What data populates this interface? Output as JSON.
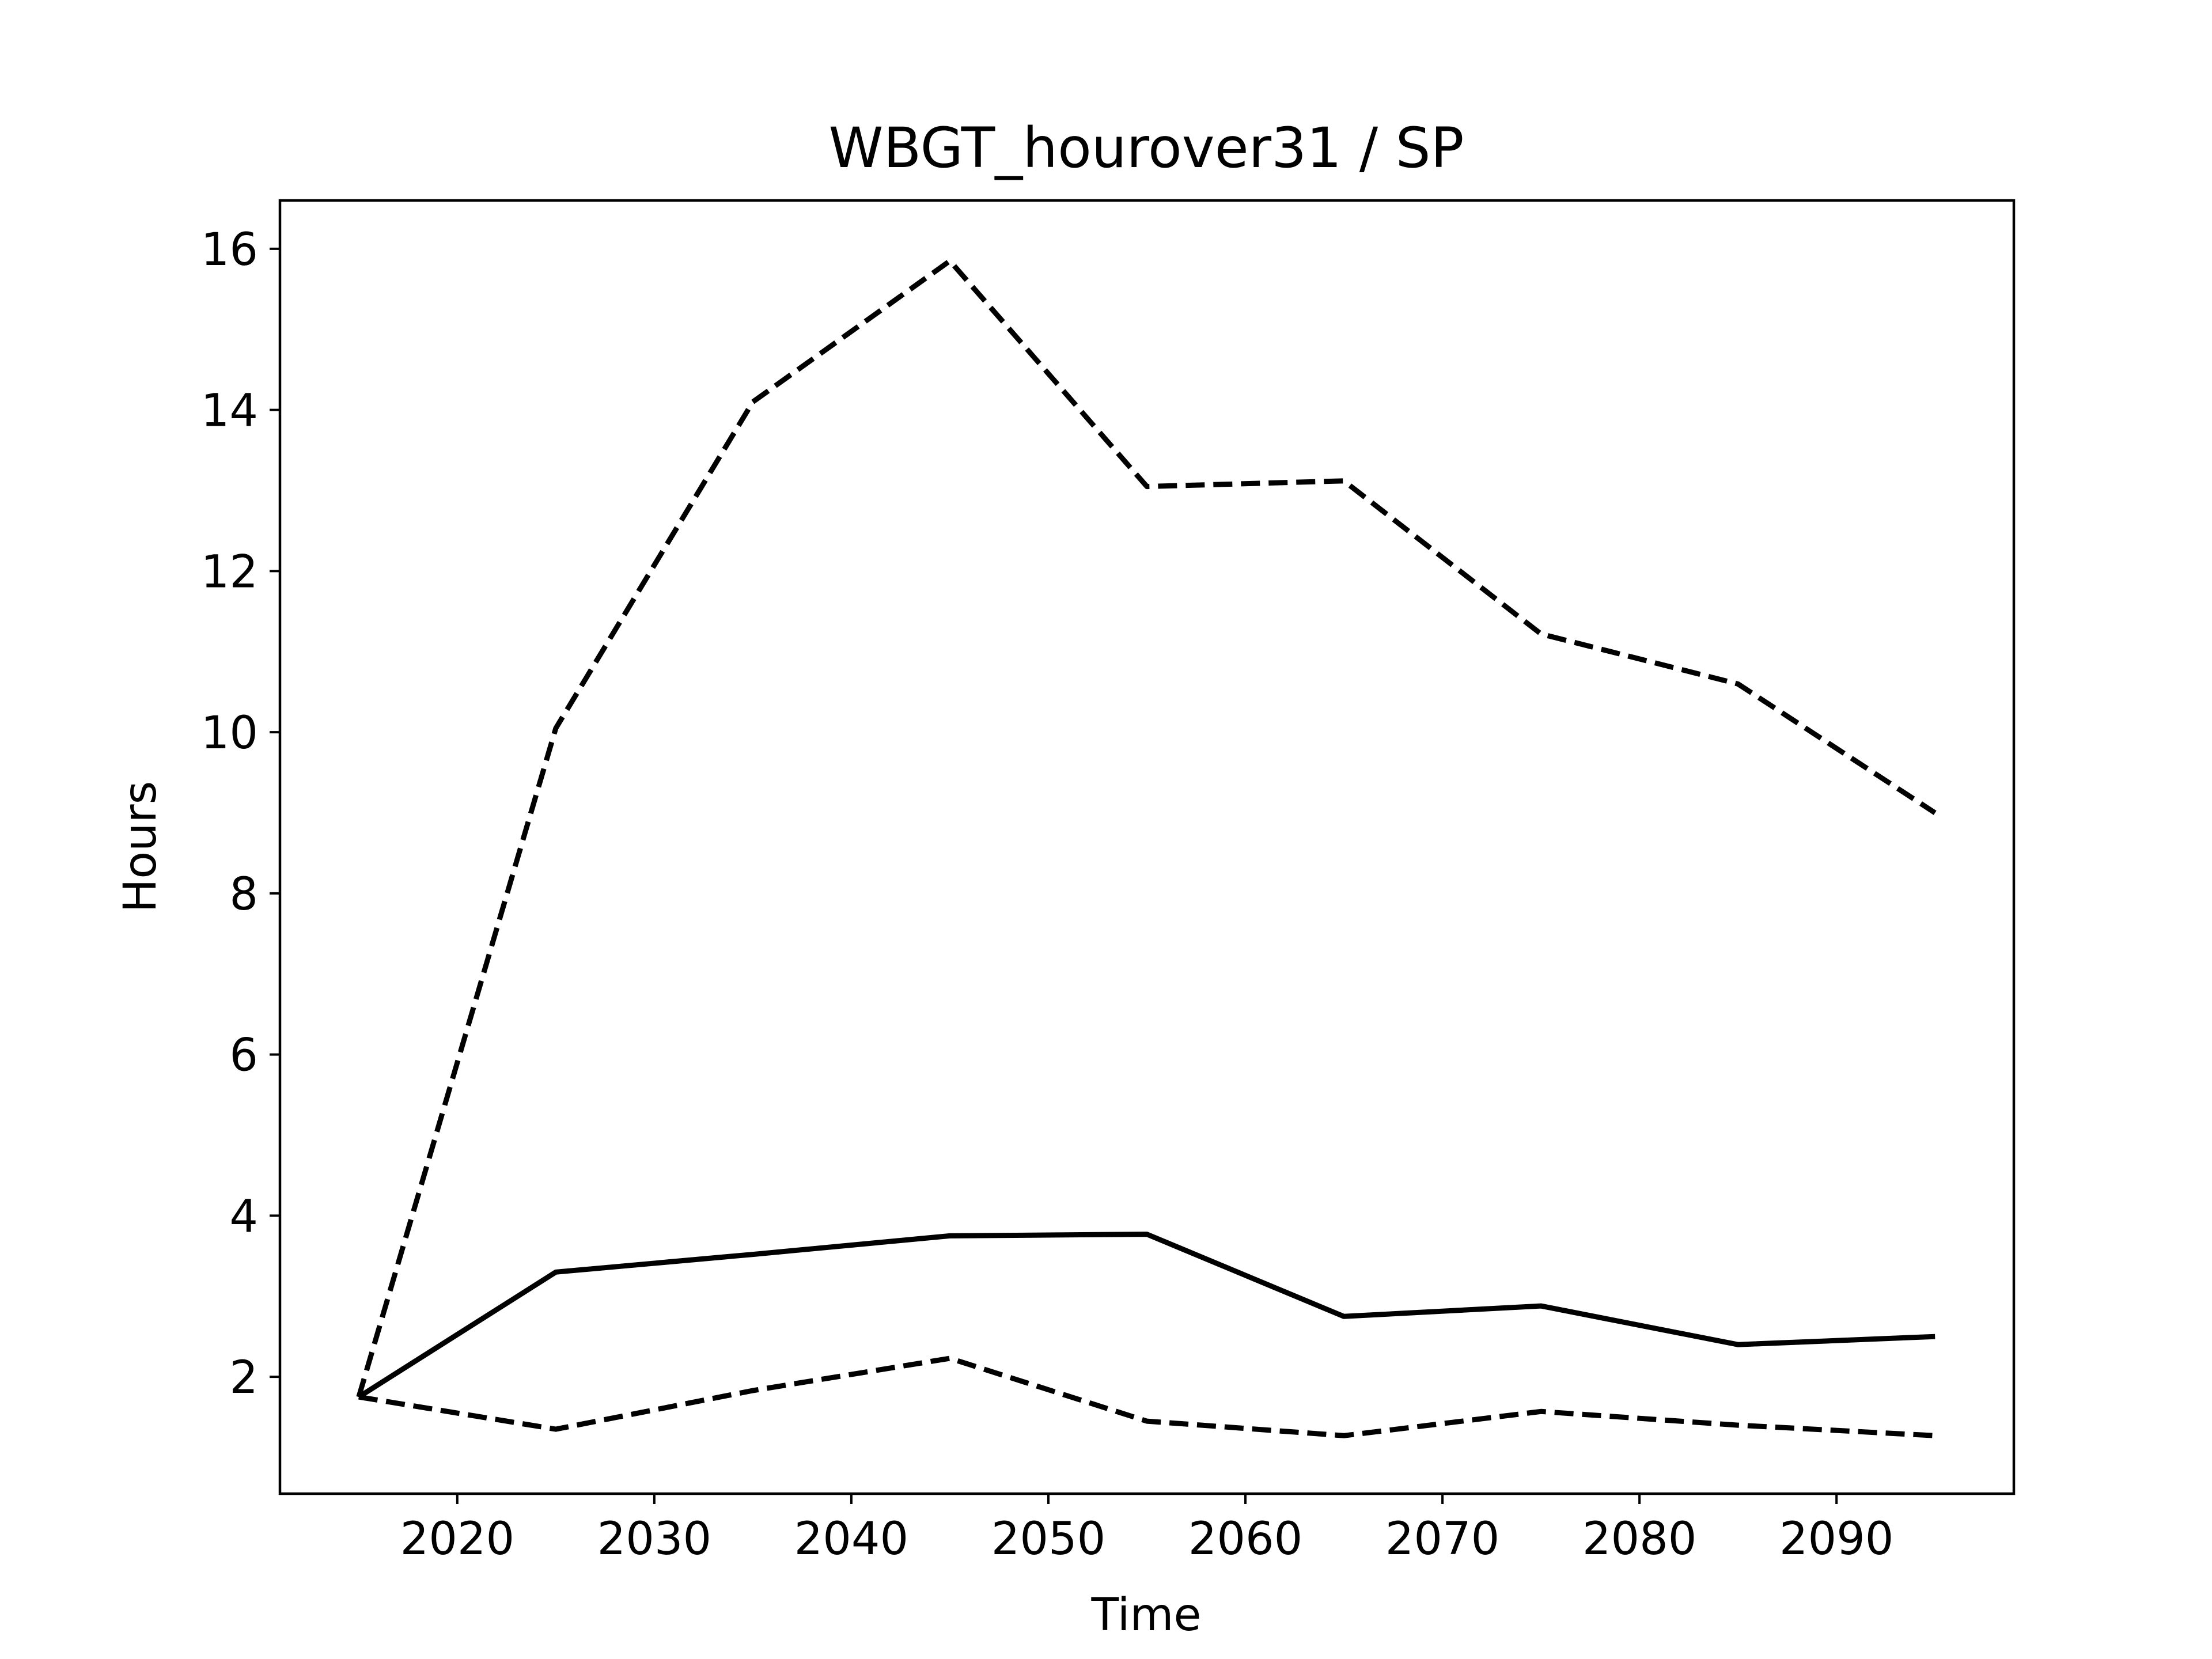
{
  "chart_data": {
    "type": "line",
    "title": "WBGT_hourover31 / SP",
    "xlabel": "Time",
    "ylabel": "Hours",
    "x": [
      2015,
      2025,
      2035,
      2045,
      2055,
      2065,
      2075,
      2085,
      2095
    ],
    "xlim": [
      2011,
      2099
    ],
    "ylim": [
      0.55,
      16.6
    ],
    "xticks": [
      2020,
      2030,
      2040,
      2050,
      2060,
      2070,
      2080,
      2090
    ],
    "yticks": [
      2,
      4,
      6,
      8,
      10,
      12,
      14,
      16
    ],
    "grid": false,
    "legend": "none",
    "series": [
      {
        "line_style": "solid",
        "color": "#000000",
        "values": [
          1.75,
          3.3,
          3.52,
          3.75,
          3.77,
          2.75,
          2.88,
          2.4,
          2.5
        ]
      },
      {
        "line_style": "dashed",
        "color": "#000000",
        "values": [
          1.75,
          10.05,
          14.1,
          15.85,
          13.05,
          13.12,
          11.22,
          10.6,
          9.0
        ]
      },
      {
        "line_style": "dashed",
        "color": "#000000",
        "values": [
          1.75,
          1.35,
          1.83,
          2.23,
          1.45,
          1.27,
          1.57,
          1.4,
          1.27
        ]
      }
    ]
  }
}
